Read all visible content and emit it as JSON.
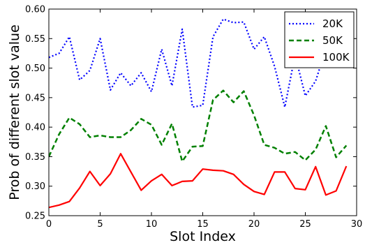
{
  "chart_data": {
    "type": "line",
    "xlabel": "Slot Index",
    "ylabel": "Prob of different slot value",
    "xlim": [
      0,
      30
    ],
    "ylim": [
      0.25,
      0.6
    ],
    "x_ticks": [
      "0",
      "5",
      "10",
      "15",
      "20",
      "25",
      "30"
    ],
    "y_ticks": [
      "0.25",
      "0.30",
      "0.35",
      "0.40",
      "0.45",
      "0.50",
      "0.55",
      "0.60"
    ],
    "grid": false,
    "legend_position": "top-right",
    "x": [
      0,
      1,
      2,
      3,
      4,
      5,
      6,
      7,
      8,
      9,
      10,
      11,
      12,
      13,
      14,
      15,
      16,
      17,
      18,
      19,
      20,
      21,
      22,
      23,
      24,
      25,
      26,
      27,
      28,
      29
    ],
    "series": [
      {
        "name": "20K",
        "color": "#0000ff",
        "line_style": "dotted",
        "values": [
          0.518,
          0.525,
          0.553,
          0.48,
          0.496,
          0.55,
          0.463,
          0.492,
          0.47,
          0.492,
          0.46,
          0.532,
          0.47,
          0.566,
          0.434,
          0.437,
          0.553,
          0.583,
          0.577,
          0.578,
          0.532,
          0.553,
          0.503,
          0.434,
          0.522,
          0.453,
          0.478,
          0.532,
          0.503,
          0.52
        ]
      },
      {
        "name": "50K",
        "color": "#008000",
        "line_style": "dashed",
        "values": [
          0.35,
          0.388,
          0.416,
          0.405,
          0.383,
          0.386,
          0.383,
          0.383,
          0.395,
          0.414,
          0.404,
          0.37,
          0.406,
          0.342,
          0.367,
          0.368,
          0.446,
          0.462,
          0.442,
          0.461,
          0.42,
          0.37,
          0.365,
          0.355,
          0.358,
          0.344,
          0.362,
          0.402,
          0.349,
          0.369
        ]
      },
      {
        "name": "100K",
        "color": "#ff0000",
        "line_style": "solid",
        "values": [
          0.264,
          0.268,
          0.274,
          0.297,
          0.325,
          0.301,
          0.321,
          0.355,
          0.324,
          0.293,
          0.309,
          0.32,
          0.301,
          0.308,
          0.309,
          0.329,
          0.327,
          0.326,
          0.32,
          0.303,
          0.291,
          0.286,
          0.324,
          0.324,
          0.296,
          0.294,
          0.333,
          0.285,
          0.292,
          0.334
        ]
      }
    ]
  }
}
